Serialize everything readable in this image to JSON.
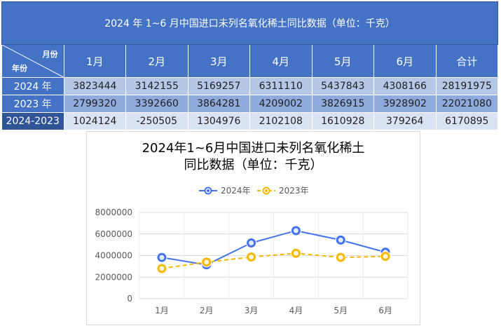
{
  "table": {
    "title": "2024 年 1~6 月中国进口未列名氧化稀土同比数据（单位：千克）",
    "corner_month": "月份",
    "corner_year": "年份",
    "columns": [
      "1月",
      "2月",
      "3月",
      "4月",
      "5月",
      "6月",
      "合计"
    ],
    "rows": [
      {
        "label": "2024 年",
        "cells": [
          "3823444",
          "3142155",
          "5169257",
          "6311110",
          "5437843",
          "4308166",
          "28191975"
        ]
      },
      {
        "label": "2023 年",
        "cells": [
          "2799320",
          "3392660",
          "3864281",
          "4209002",
          "3826915",
          "3928902",
          "22021080"
        ]
      },
      {
        "label": "2024-2023",
        "cells": [
          "1024124",
          "-250505",
          "1304976",
          "2102108",
          "1610928",
          "379264",
          "6170895"
        ]
      }
    ]
  },
  "chart_data": {
    "type": "line",
    "title_line1": "2024年1~6月中国进口未列名氧化稀土",
    "title_line2": "同比数据（单位：千克）",
    "categories": [
      "1月",
      "2月",
      "3月",
      "4月",
      "5月",
      "6月"
    ],
    "series": [
      {
        "name": "2024年",
        "values": [
          3823444,
          3142155,
          5169257,
          6311110,
          5437843,
          4308166
        ],
        "color": "#4472ef",
        "dash": "solid"
      },
      {
        "name": "2023年",
        "values": [
          2799320,
          3392660,
          3864281,
          4209002,
          3826915,
          3928902
        ],
        "color": "#f5b800",
        "dash": "dashed"
      }
    ],
    "ylim": [
      0,
      8000000
    ],
    "yticks": [
      "0",
      "2000000",
      "4000000",
      "6000000",
      "8000000"
    ],
    "ytick_values": [
      0,
      2000000,
      4000000,
      6000000,
      8000000
    ],
    "grid": true,
    "legend_position": "top"
  }
}
